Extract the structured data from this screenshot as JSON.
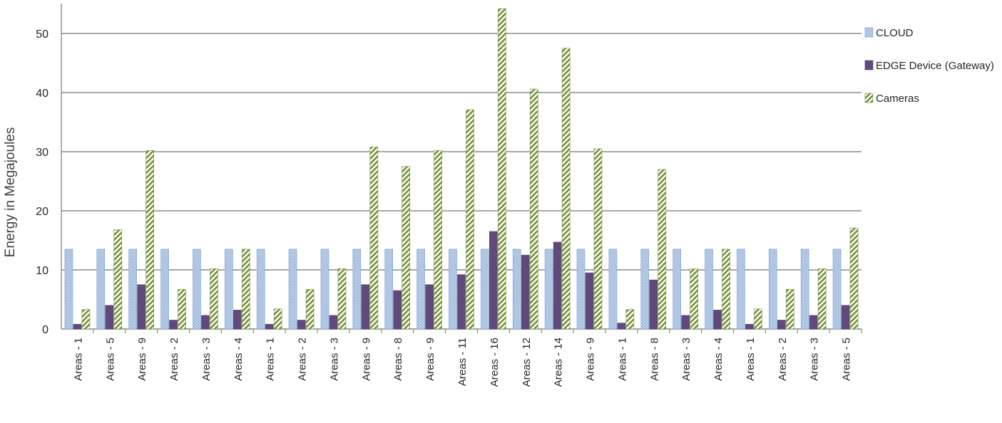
{
  "chart_data": {
    "type": "bar",
    "title": "",
    "xlabel": "",
    "ylabel": "Energy in Megajoules",
    "ylim": [
      0,
      55
    ],
    "yticks": [
      0,
      10,
      20,
      30,
      40,
      50
    ],
    "grid": true,
    "legend_position": "right",
    "categories": [
      "Areas - 1",
      "Areas - 5",
      "Areas - 9",
      "Areas - 2",
      "Areas - 3",
      "Areas - 4",
      "Areas - 1",
      "Areas - 2",
      "Areas - 3",
      "Areas - 9",
      "Areas - 8",
      "Areas - 9",
      "Areas - 11",
      "Areas - 16",
      "Areas - 12",
      "Areas - 14",
      "Areas - 9",
      "Areas - 1",
      "Areas - 8",
      "Areas - 3",
      "Areas - 4",
      "Areas - 1",
      "Areas - 2",
      "Areas - 3",
      "Areas - 5"
    ],
    "series": [
      {
        "name": "CLOUD",
        "color": "#95b3d7",
        "pattern": "cross-hatch",
        "values": [
          13.5,
          13.5,
          13.5,
          13.5,
          13.5,
          13.5,
          13.5,
          13.5,
          13.5,
          13.5,
          13.5,
          13.5,
          13.5,
          13.5,
          13.5,
          13.5,
          13.5,
          13.5,
          13.5,
          13.5,
          13.5,
          13.5,
          13.5,
          13.5,
          13.5
        ]
      },
      {
        "name": "EDGE Device (Gateway)",
        "color": "#604a7b",
        "pattern": "solid",
        "values": [
          0.8,
          4,
          7.5,
          1.5,
          2.3,
          3.2,
          0.8,
          1.5,
          2.3,
          7.5,
          6.5,
          7.5,
          9.2,
          16.5,
          12.5,
          14.7,
          9.5,
          1,
          8.3,
          2.3,
          3.2,
          0.8,
          1.5,
          2.3,
          4
        ]
      },
      {
        "name": "Cameras",
        "color": "#77933c",
        "pattern": "diagonal-stripes",
        "values": [
          3.3,
          16.8,
          30.2,
          6.7,
          10.2,
          13.5,
          3.4,
          6.7,
          10.2,
          30.8,
          27.5,
          30.2,
          37.1,
          54.2,
          40.6,
          47.5,
          30.5,
          3.3,
          27,
          10.2,
          13.5,
          3.4,
          6.7,
          10.2,
          17.1
        ]
      }
    ]
  }
}
